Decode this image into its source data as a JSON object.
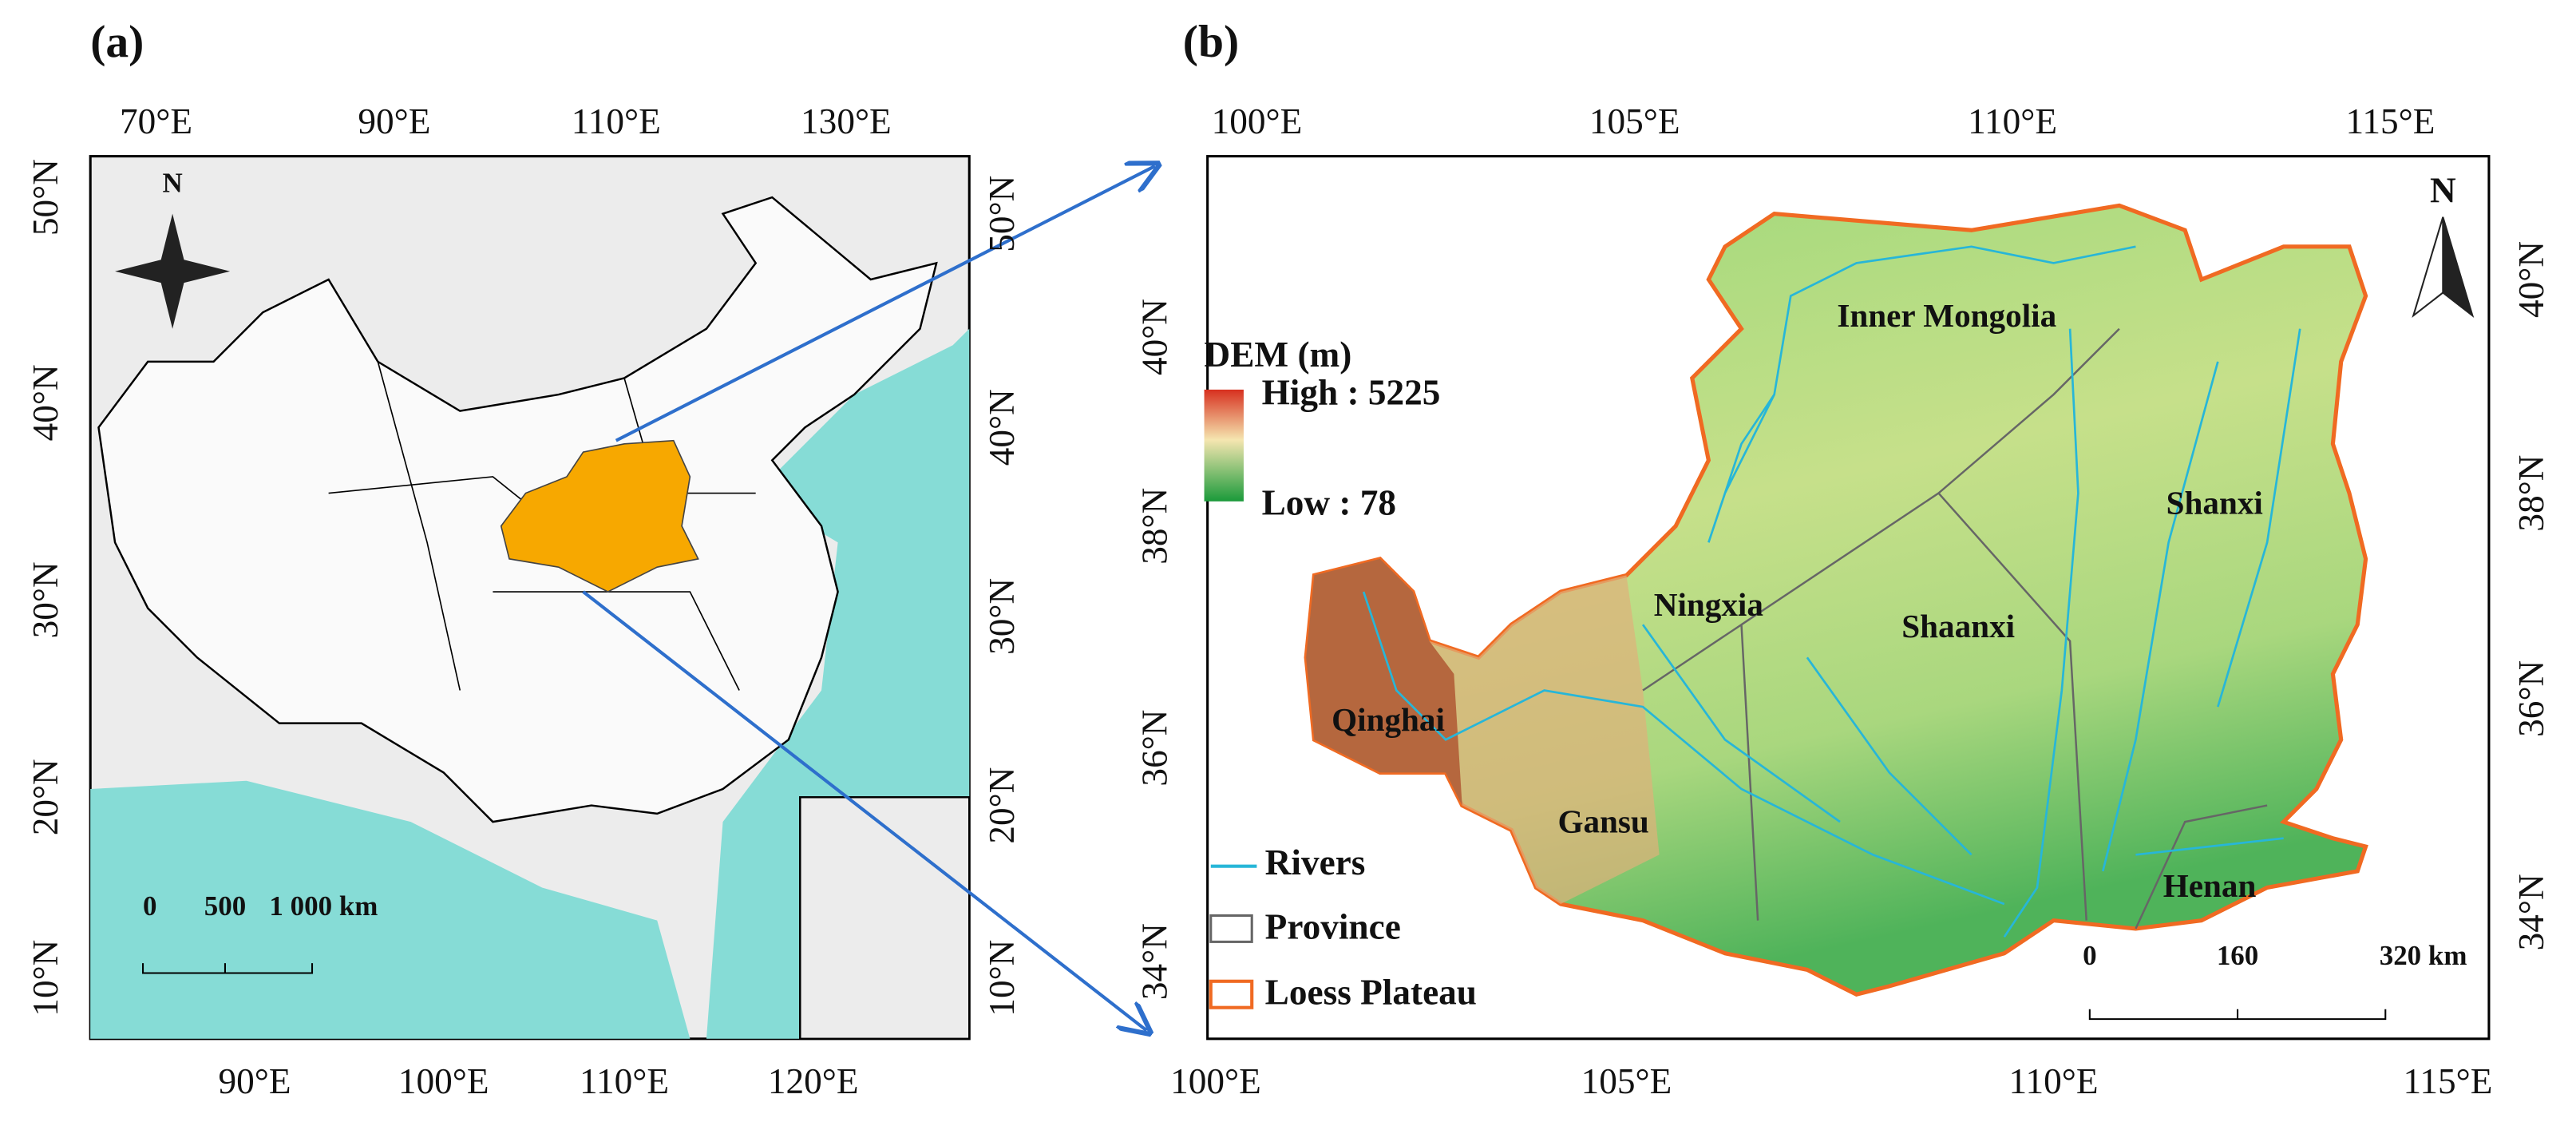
{
  "panel_a": {
    "label": "(a)",
    "top_labels": [
      "70°E",
      "90°E",
      "110°E",
      "130°E"
    ],
    "bottom_labels": [
      "90°E",
      "100°E",
      "110°E",
      "120°E"
    ],
    "left_labels": [
      "50°N",
      "40°N",
      "30°N",
      "20°N",
      "10°N"
    ],
    "right_labels": [
      "50°N",
      "40°N",
      "30°N",
      "20°N",
      "10°N"
    ],
    "north": "N",
    "scale": [
      "0",
      "500",
      "1 000 km"
    ]
  },
  "panel_b": {
    "label": "(b)",
    "top_labels": [
      "100°E",
      "105°E",
      "110°E",
      "115°E"
    ],
    "bottom_labels": [
      "100°E",
      "105°E",
      "110°E",
      "115°E"
    ],
    "left_labels": [
      "40°N",
      "38°N",
      "36°N",
      "34°N"
    ],
    "right_labels": [
      "40°N",
      "38°N",
      "36°N",
      "34°N"
    ],
    "north": "N",
    "legend": {
      "title": "DEM (m)",
      "high": "High : 5225",
      "low": "Low : 78",
      "items": [
        "Rivers",
        "Province",
        "Loess Plateau"
      ]
    },
    "provinces": [
      "Inner Mongolia",
      "Shanxi",
      "Ningxia",
      "Shaanxi",
      "Qinghai",
      "Gansu",
      "Henan"
    ],
    "scale": [
      "0",
      "160",
      "320 km"
    ]
  }
}
